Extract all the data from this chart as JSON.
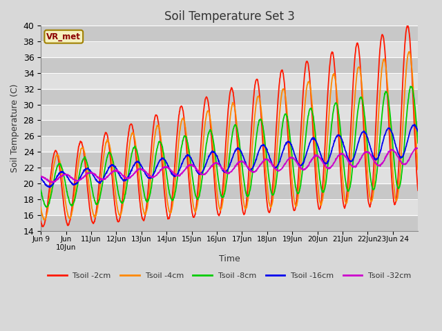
{
  "title": "Soil Temperature Set 3",
  "xlabel": "Time",
  "ylabel": "Soil Temperature (C)",
  "ylim": [
    14,
    40
  ],
  "fig_facecolor": "#d8d8d8",
  "plot_facecolor": "#d8d8d8",
  "band_color_light": "#e0e0e0",
  "band_color_dark": "#c8c8c8",
  "grid_color": "#ffffff",
  "annotation_text": "VR_met",
  "annotation_bg": "#f5f0c0",
  "annotation_border": "#a08000",
  "annotation_text_color": "#8b0000",
  "series": {
    "Tsoil -2cm": {
      "color": "#ff1800"
    },
    "Tsoil -4cm": {
      "color": "#ff8800"
    },
    "Tsoil -8cm": {
      "color": "#00cc00"
    },
    "Tsoil -16cm": {
      "color": "#0000ee"
    },
    "Tsoil -32cm": {
      "color": "#cc00cc"
    }
  },
  "xtick_labels": [
    "Jun 9",
    "Jun",
    "10Jun",
    "11Jun",
    "12Jun",
    "13Jun",
    "14Jun",
    "15Jun",
    "16Jun",
    "17Jun",
    "18Jun",
    "19Jun",
    "20Jun",
    "21Jun",
    "22Jun",
    "23Jun 24"
  ],
  "title_fontsize": 12,
  "lw": 1.3
}
